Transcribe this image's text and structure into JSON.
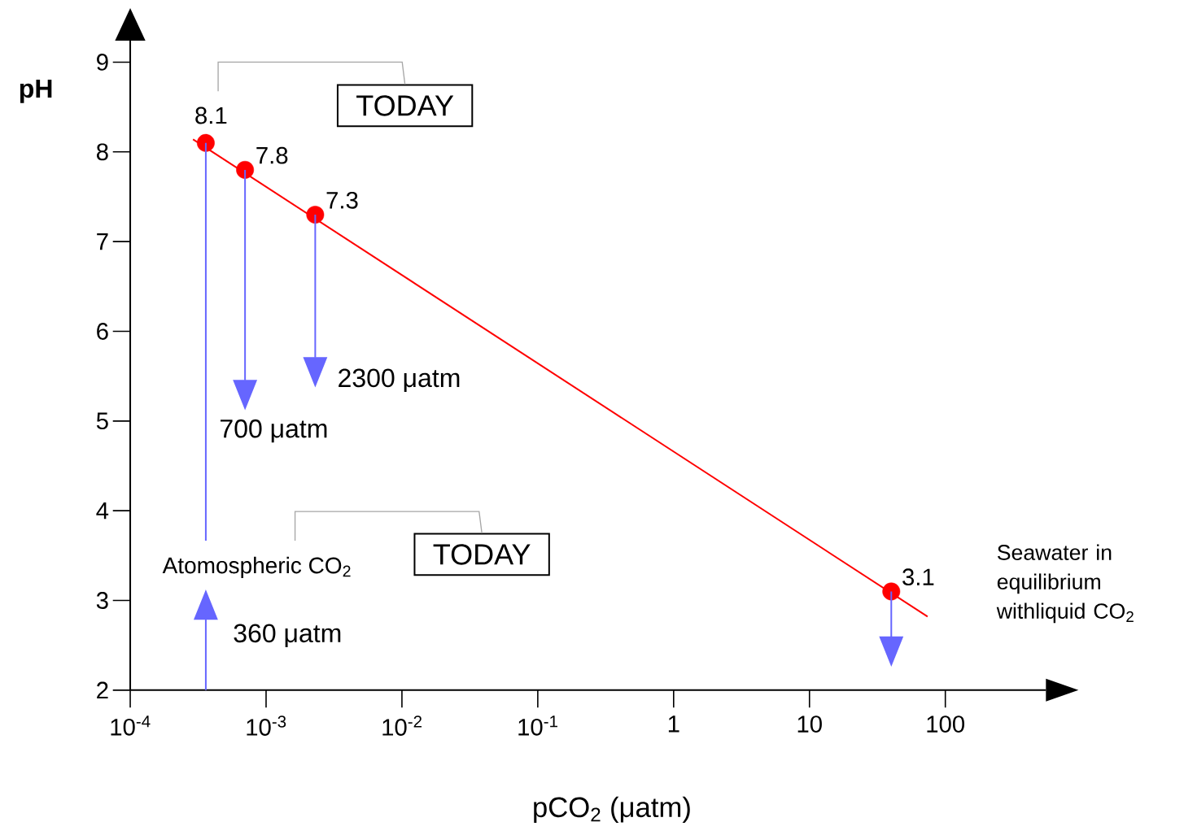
{
  "chart_data": {
    "type": "scatter",
    "xlabel": "pCO$_{2}$ (μatm)",
    "ylabel": "pH",
    "log": "x",
    "xlim": [
      0.0001,
      550
    ],
    "ylim": [
      2,
      9.24
    ],
    "xticks": [
      {
        "value": 0.0001,
        "label": "10$^{-4}$"
      },
      {
        "value": 0.001,
        "label": "10$^{-3}$"
      },
      {
        "value": 0.01,
        "label": "10$^{-2}$"
      },
      {
        "value": 0.1,
        "label": "10$^{-1}$"
      },
      1,
      10,
      100
    ],
    "yticks": [
      2,
      3,
      4,
      5,
      6,
      7,
      8,
      9
    ],
    "series": [
      {
        "type": "line",
        "color": "#ff0000",
        "marker": "none",
        "x": [
          0.00029,
          74
        ],
        "values": [
          8.14,
          2.82
        ]
      },
      {
        "color": "#ff0000",
        "marker": "circle",
        "x": [
          0.00036,
          0.0007,
          0.0023,
          40
        ],
        "values": [
          8.1,
          7.8,
          7.3,
          3.1
        ],
        "value_labels": [
          "8.1",
          "7.8",
          "7.3",
          "3.1"
        ]
      }
    ],
    "annotations": [
      "TODAY",
      "TODAY",
      "Atomospheric CO$_{2}$",
      "360 μatm",
      "700 μatm",
      {
        "text": "2300 μatm",
        "x": 0.0023,
        "y": 7.3
      },
      "Seawater in equilibrium withliquid CO$_{2}$"
    ]
  }
}
